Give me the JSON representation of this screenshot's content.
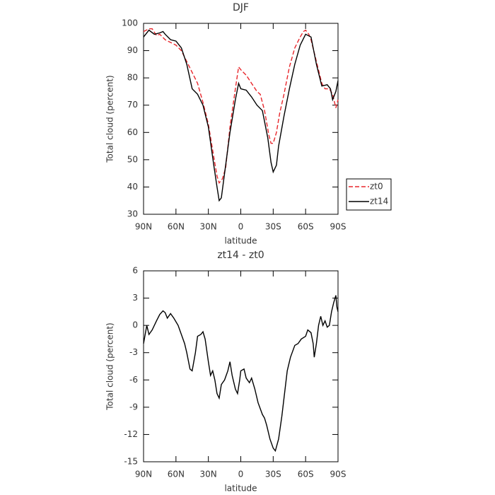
{
  "chart_data": [
    {
      "type": "line",
      "title": "DJF",
      "xlabel": "latitude",
      "ylabel": "Total cloud (percent)",
      "xlim": [
        90,
        -90
      ],
      "xticks": [
        {
          "value": 90,
          "label": "90N"
        },
        {
          "value": 60,
          "label": "60N"
        },
        {
          "value": 30,
          "label": "30N"
        },
        0,
        {
          "value": -30,
          "label": "30S"
        },
        {
          "value": -60,
          "label": "60S"
        },
        {
          "value": -90,
          "label": "90S"
        }
      ],
      "ylim": [
        30,
        100
      ],
      "yticks": [
        30,
        40,
        50,
        60,
        70,
        80,
        90,
        100
      ],
      "legend": "right",
      "series": [
        {
          "name": "zt0",
          "color": "#e8262b",
          "style": "dashed",
          "x": [
            90,
            85,
            82,
            78,
            75,
            70,
            65,
            60,
            55,
            50,
            45,
            40,
            35,
            30,
            25,
            22,
            20,
            17,
            14,
            10,
            5,
            2,
            0,
            -5,
            -10,
            -15,
            -18,
            -22,
            -26,
            -28,
            -30,
            -33,
            -36,
            -40,
            -45,
            -50,
            -55,
            -58,
            -60,
            -63,
            -65,
            -70,
            -75,
            -78,
            -82,
            -85,
            -88,
            -90
          ],
          "values": [
            97,
            98,
            98,
            95.5,
            96,
            94,
            93,
            92,
            90,
            86,
            82,
            78,
            71,
            63,
            51,
            44,
            41.5,
            43,
            47,
            62,
            76,
            84,
            83,
            81,
            78,
            75,
            74,
            68,
            59,
            56,
            56,
            60,
            67,
            74,
            84,
            91,
            95,
            97,
            97.5,
            96,
            94,
            86,
            78,
            76,
            76,
            74,
            69,
            72
          ]
        },
        {
          "name": "zt14",
          "color": "#000000",
          "style": "solid",
          "x": [
            90,
            85,
            80,
            75,
            72,
            70,
            65,
            60,
            55,
            50,
            45,
            40,
            35,
            30,
            25,
            22,
            20,
            18,
            15,
            10,
            5,
            2,
            0,
            -5,
            -10,
            -15,
            -20,
            -25,
            -28,
            -30,
            -33,
            -35,
            -40,
            -45,
            -50,
            -55,
            -60,
            -65,
            -70,
            -75,
            -80,
            -83,
            -85,
            -88,
            -90
          ],
          "values": [
            95,
            97.5,
            96,
            96.5,
            97,
            96,
            94,
            93.5,
            91,
            85,
            76,
            74,
            70,
            62,
            48,
            40,
            35,
            36,
            45,
            60,
            72,
            78,
            76,
            75.5,
            73,
            70,
            68,
            58,
            49,
            45.5,
            48,
            55,
            66,
            76,
            85,
            92,
            96,
            95,
            85,
            77,
            77.5,
            76,
            72,
            75,
            79
          ]
        }
      ]
    },
    {
      "type": "line",
      "title": "zt14 - zt0",
      "xlabel": "latitude",
      "ylabel": "Total cloud (percent)",
      "xlim": [
        90,
        -90
      ],
      "xticks": [
        {
          "value": 90,
          "label": "90N"
        },
        {
          "value": 60,
          "label": "60N"
        },
        {
          "value": 30,
          "label": "30N"
        },
        0,
        {
          "value": -30,
          "label": "30S"
        },
        {
          "value": -60,
          "label": "60S"
        },
        {
          "value": -90,
          "label": "90S"
        }
      ],
      "ylim": [
        -15,
        6
      ],
      "yticks": [
        -15,
        -12,
        -9,
        -6,
        -3,
        0,
        3,
        6
      ],
      "color": "#000000",
      "x": [
        90,
        87,
        85,
        82,
        78,
        75,
        72,
        70,
        68,
        65,
        62,
        58,
        55,
        52,
        50,
        47,
        45,
        42,
        40,
        37,
        35,
        33,
        30,
        28,
        26,
        24,
        22,
        20,
        18,
        15,
        12,
        10,
        8,
        5,
        3,
        1,
        0,
        -3,
        -5,
        -8,
        -10,
        -13,
        -16,
        -20,
        -22,
        -24,
        -27,
        -30,
        -32,
        -35,
        -38,
        -40,
        -43,
        -46,
        -50,
        -53,
        -56,
        -60,
        -62,
        -65,
        -67,
        -68,
        -70,
        -72,
        -74,
        -76,
        -78,
        -80,
        -82,
        -84,
        -86,
        -88,
        -89,
        -90
      ],
      "values": [
        -2,
        0,
        -1,
        -0.5,
        0.5,
        1.2,
        1.6,
        1.4,
        0.8,
        1.3,
        0.8,
        0,
        -1,
        -2,
        -3,
        -4.8,
        -5,
        -3,
        -1.2,
        -1,
        -0.7,
        -1.5,
        -4,
        -5.5,
        -5,
        -6,
        -7.5,
        -8,
        -6.5,
        -6,
        -5,
        -4,
        -5.5,
        -7,
        -7.5,
        -6,
        -5,
        -4.8,
        -5.8,
        -6.3,
        -5.8,
        -7,
        -8.5,
        -9.8,
        -10.2,
        -11,
        -12.5,
        -13.5,
        -13.8,
        -12.5,
        -10,
        -8,
        -5,
        -3.5,
        -2.2,
        -2,
        -1.5,
        -1.2,
        -0.5,
        -0.8,
        -2,
        -3.5,
        -2,
        0,
        1,
        0,
        0.5,
        -0.2,
        0,
        1.5,
        2.5,
        3.3,
        2,
        1.5
      ]
    }
  ]
}
